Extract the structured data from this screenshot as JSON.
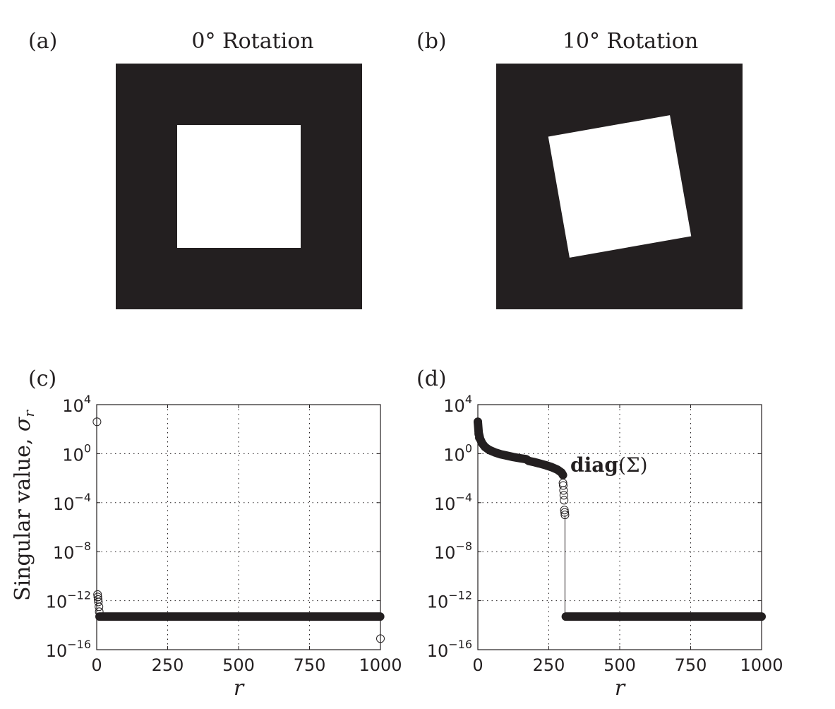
{
  "panels": {
    "a": {
      "label": "(a)",
      "title": "0° Rotation",
      "rotation_deg": 0
    },
    "b": {
      "label": "(b)",
      "title": "10° Rotation",
      "rotation_deg": 10
    },
    "c": {
      "label": "(c)"
    },
    "d": {
      "label": "(d)"
    }
  },
  "colors": {
    "ink": "#231f20",
    "background": "#ffffff",
    "image_dark": "#231f20",
    "image_light": "#ffffff"
  },
  "chart_data": [
    {
      "id": "c",
      "type": "scatter",
      "title": "",
      "xlabel": "r",
      "ylabel": "Singular value, σr",
      "ylabel_main": "Singular value, ",
      "ylabel_symbol": "σ",
      "ylabel_sub": "r",
      "yscale": "log",
      "xlim": [
        0,
        1000
      ],
      "ylim_exp": [
        -16,
        4
      ],
      "xticks": [
        0,
        250,
        500,
        750,
        1000
      ],
      "xtick_labels": [
        "0",
        "250",
        "500",
        "750",
        "1000"
      ],
      "yticks_exp": [
        4,
        0,
        -4,
        -8,
        -12,
        -16
      ],
      "ytick_labels_base": [
        "10",
        "10",
        "10",
        "10",
        "10",
        "10"
      ],
      "ytick_labels_exp": [
        "4",
        "0",
        "−4",
        "−8",
        "−12",
        "−16"
      ],
      "grid": true,
      "series": [
        {
          "name": "diag(Σ)",
          "points": [
            [
              1,
              2.6
            ],
            [
              3,
              -11.5
            ],
            [
              4,
              -11.7
            ],
            [
              5,
              -11.9
            ],
            [
              6,
              -12.1
            ],
            [
              8,
              -12.5
            ],
            [
              9,
              -12.9
            ],
            [
              1000,
              -15.1
            ]
          ],
          "dense_band": {
            "x_start": 10,
            "x_end": 999,
            "log10_value": -13.3
          }
        }
      ]
    },
    {
      "id": "d",
      "type": "scatter",
      "title": "",
      "xlabel": "r",
      "ylabel": "",
      "yscale": "log",
      "xlim": [
        0,
        1000
      ],
      "ylim_exp": [
        -16,
        4
      ],
      "xticks": [
        0,
        250,
        500,
        750,
        1000
      ],
      "xtick_labels": [
        "0",
        "250",
        "500",
        "750",
        "1000"
      ],
      "yticks_exp": [
        4,
        0,
        -4,
        -8,
        -12,
        -16
      ],
      "ytick_labels_base": [
        "10",
        "10",
        "10",
        "10",
        "10",
        "10"
      ],
      "ytick_labels_exp": [
        "4",
        "0",
        "−4",
        "−8",
        "−12",
        "−16"
      ],
      "grid": true,
      "annotation": {
        "bold_text": "diag",
        "text": "(Σ)",
        "at": [
          330,
          -0.7
        ]
      },
      "series": [
        {
          "name": "diag(Σ)",
          "curve": [
            [
              0,
              2.6
            ],
            [
              3,
              1.7
            ],
            [
              8,
              1.2
            ],
            [
              15,
              0.85
            ],
            [
              25,
              0.55
            ],
            [
              40,
              0.3
            ],
            [
              60,
              0.1
            ],
            [
              80,
              -0.05
            ],
            [
              100,
              -0.15
            ],
            [
              125,
              -0.28
            ],
            [
              150,
              -0.38
            ],
            [
              170,
              -0.45
            ],
            [
              180,
              -0.6
            ],
            [
              200,
              -0.7
            ],
            [
              220,
              -0.82
            ],
            [
              240,
              -0.95
            ],
            [
              260,
              -1.1
            ],
            [
              280,
              -1.3
            ],
            [
              295,
              -1.55
            ],
            [
              300,
              -1.75
            ]
          ],
          "points": [
            [
              0,
              2.6
            ],
            [
              3,
              1.6
            ],
            [
              5,
              1.3
            ],
            [
              300,
              -2.4
            ],
            [
              301,
              -2.6
            ],
            [
              302,
              -3.0
            ],
            [
              303,
              -3.4
            ],
            [
              304,
              -3.8
            ],
            [
              305,
              -4.6
            ],
            [
              306,
              -4.8
            ],
            [
              307,
              -5.0
            ]
          ],
          "drop": {
            "x": 307,
            "from_log10": -5.0,
            "to_log10": -13.3
          },
          "dense_band": {
            "x_start": 310,
            "x_end": 1000,
            "log10_value": -13.3
          }
        }
      ]
    }
  ]
}
